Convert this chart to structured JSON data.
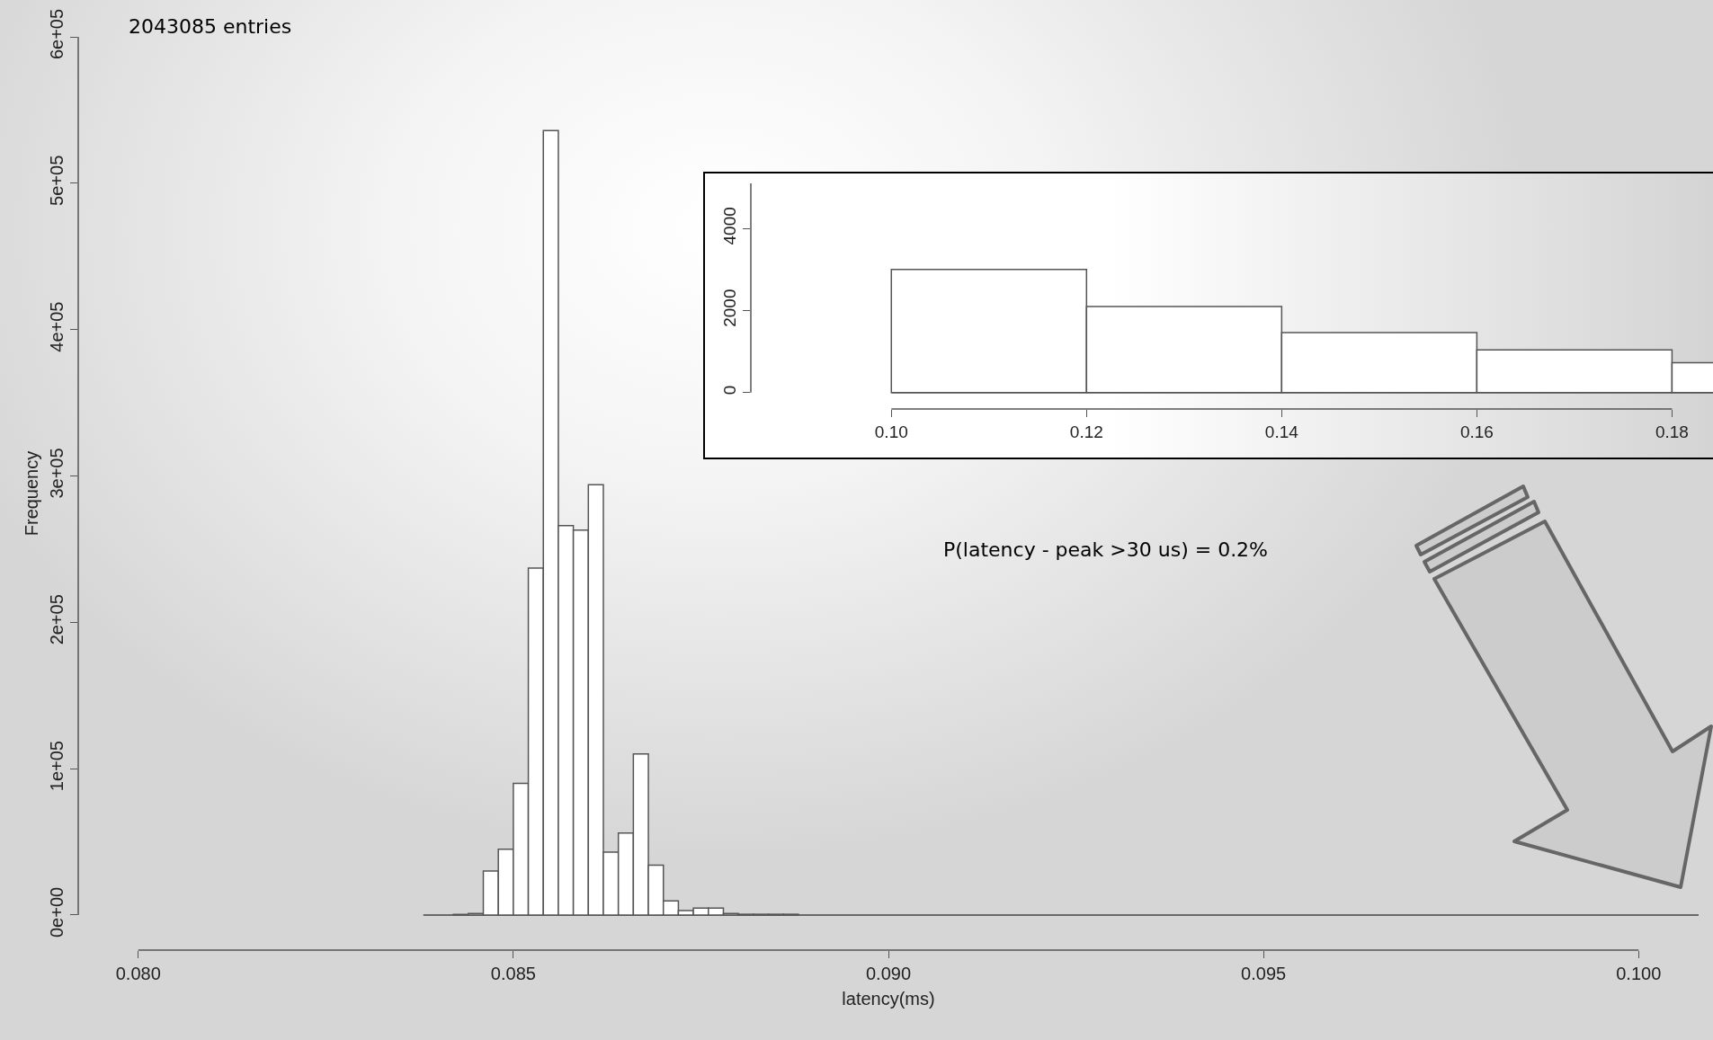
{
  "chart_data": [
    {
      "type": "histogram",
      "xlabel": "latency(ms)",
      "ylabel": "Frequency",
      "color": "#ffffff",
      "annotations": [
        "2043085 entries",
        "P(latency - peak >30 us) = 0.2%"
      ],
      "bins": [
        0.0838,
        0.084,
        0.0842,
        0.0844,
        0.0846,
        0.0848,
        0.085,
        0.0852,
        0.0854,
        0.0856,
        0.0858,
        0.086,
        0.0862,
        0.0864,
        0.0866,
        0.0868,
        0.087,
        0.0872,
        0.0874,
        0.0876,
        0.0878,
        0.088,
        0.0882,
        0.0884,
        0.0886,
        0.0888,
        0.089,
        0.0892,
        0.0894,
        0.0896,
        0.0898,
        0.09,
        0.0902,
        0.0904,
        0.0906,
        0.0908,
        0.091,
        0.0912,
        0.0914,
        0.0916,
        0.0918,
        0.092,
        0.0922,
        0.0924,
        0.0926,
        0.0928,
        0.093,
        0.0932,
        0.0934,
        0.0936,
        0.0938,
        0.094,
        0.0942,
        0.0944,
        0.0946,
        0.0948,
        0.095,
        0.0952,
        0.0954,
        0.0956,
        0.0958,
        0.096,
        0.0962,
        0.0964,
        0.0966,
        0.0968,
        0.097,
        0.0972,
        0.0974,
        0.0976,
        0.0978,
        0.098,
        0.0982,
        0.0984,
        0.0986,
        0.0988,
        0.099,
        0.0992,
        0.0994,
        0.0996,
        0.0998,
        0.1,
        0.1002,
        0.1004,
        0.1006,
        0.1008
      ],
      "values": [
        0,
        0,
        400,
        1000,
        30000,
        45000,
        90000,
        237000,
        536000,
        266000,
        263000,
        294000,
        43000,
        56000,
        110000,
        34000,
        9700,
        3000,
        4700,
        4700,
        1000,
        500,
        500,
        500,
        500,
        0,
        0,
        0,
        0,
        0,
        0,
        0,
        0,
        0,
        0,
        0,
        0,
        0,
        0,
        0,
        0,
        0,
        0,
        0,
        0,
        0,
        0,
        0,
        0,
        0,
        0,
        0,
        0,
        0,
        0,
        0,
        0,
        0,
        0,
        0,
        0,
        0,
        0,
        0,
        0,
        0,
        0,
        0,
        0,
        0,
        0,
        0,
        0,
        0,
        0,
        0,
        0,
        0,
        0,
        0,
        0,
        0,
        0,
        0,
        0
      ],
      "xlim": [
        0.0792,
        0.1008
      ],
      "ylim": [
        -24000,
        600000
      ],
      "xticks": [
        {
          "value": 0.08,
          "label": "0.080"
        },
        {
          "value": 0.085,
          "label": "0.085"
        },
        {
          "value": 0.09,
          "label": "0.090"
        },
        {
          "value": 0.095,
          "label": "0.095"
        },
        {
          "value": 0.1,
          "label": "0.100"
        }
      ],
      "yticks": [
        {
          "value": 0,
          "label": "0e+00"
        },
        {
          "value": 100000,
          "label": "1e+05"
        },
        {
          "value": 200000,
          "label": "2e+05"
        },
        {
          "value": 300000,
          "label": "3e+05"
        },
        {
          "value": 400000,
          "label": "4e+05"
        },
        {
          "value": 500000,
          "label": "5e+05"
        },
        {
          "value": 600000,
          "label": "6e+05"
        }
      ]
    },
    {
      "type": "histogram",
      "color": "#ffffff",
      "bins": [
        0.1,
        0.12,
        0.14,
        0.16,
        0.18,
        0.2
      ],
      "values": [
        3000,
        2100,
        1460,
        1040,
        730
      ],
      "xlim": [
        0.0856,
        0.1842
      ],
      "ylim": [
        -400,
        5100
      ],
      "xticks": [
        {
          "value": 0.1,
          "label": "0.10"
        },
        {
          "value": 0.12,
          "label": "0.12"
        },
        {
          "value": 0.14,
          "label": "0.14"
        },
        {
          "value": 0.16,
          "label": "0.16"
        },
        {
          "value": 0.18,
          "label": "0.18"
        }
      ],
      "yticks": [
        0,
        2000,
        4000
      ]
    }
  ]
}
